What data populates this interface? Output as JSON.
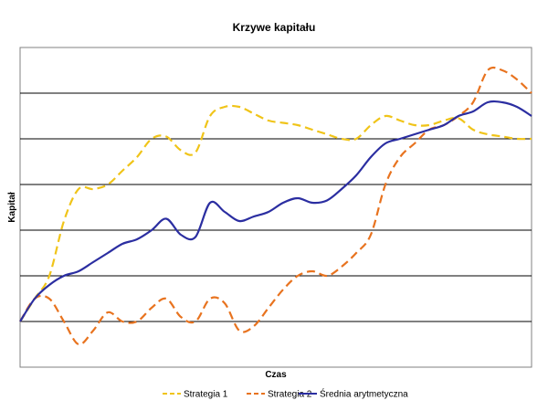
{
  "chart_data": {
    "type": "line",
    "title": "Krzywe kapitału",
    "xlabel": "Czas",
    "ylabel": "Kapitał",
    "x": [
      0,
      2,
      4,
      6,
      8,
      10,
      12,
      14,
      16,
      18,
      20,
      22,
      24,
      26,
      28,
      30,
      32,
      34,
      36,
      38,
      40,
      42,
      44,
      46,
      48,
      50,
      52,
      54,
      56,
      58,
      60,
      62,
      64,
      66,
      68,
      70
    ],
    "xlim": [
      0,
      70
    ],
    "ylim": [
      -1,
      6
    ],
    "yticks": [
      -1,
      0,
      1,
      2,
      3,
      4,
      5,
      6
    ],
    "grid": true,
    "legend": "bottom",
    "series": [
      {
        "name": "Strategia 1",
        "color": "#f0c419",
        "dash": "dashed",
        "values": [
          0,
          0.5,
          1,
          2.2,
          2.9,
          2.9,
          3.0,
          3.3,
          3.6,
          4.0,
          4.05,
          3.75,
          3.7,
          4.5,
          4.7,
          4.7,
          4.55,
          4.4,
          4.35,
          4.3,
          4.2,
          4.1,
          4.0,
          4.0,
          4.3,
          4.5,
          4.4,
          4.3,
          4.3,
          4.4,
          4.45,
          4.2,
          4.1,
          4.05,
          4.0,
          4.0
        ]
      },
      {
        "name": "Strategia 2",
        "color": "#e8731f",
        "dash": "dashed",
        "values": [
          0,
          0.5,
          0.5,
          0.0,
          -0.5,
          -0.2,
          0.2,
          0.0,
          0.0,
          0.3,
          0.5,
          0.1,
          0.0,
          0.5,
          0.4,
          -0.2,
          -0.1,
          0.3,
          0.7,
          1.0,
          1.1,
          1.0,
          1.2,
          1.5,
          1.9,
          3.0,
          3.6,
          3.9,
          4.2,
          4.3,
          4.5,
          4.8,
          5.5,
          5.5,
          5.3,
          5.0
        ]
      },
      {
        "name": "Średnia arytmetyczna",
        "color": "#2b2ea1",
        "dash": "solid",
        "values": [
          0,
          0.5,
          0.8,
          1.0,
          1.1,
          1.3,
          1.5,
          1.7,
          1.8,
          2.0,
          2.25,
          1.9,
          1.85,
          2.6,
          2.4,
          2.2,
          2.3,
          2.4,
          2.6,
          2.7,
          2.6,
          2.65,
          2.9,
          3.2,
          3.6,
          3.9,
          4.0,
          4.1,
          4.2,
          4.3,
          4.5,
          4.6,
          4.8,
          4.8,
          4.7,
          4.5
        ]
      }
    ]
  }
}
